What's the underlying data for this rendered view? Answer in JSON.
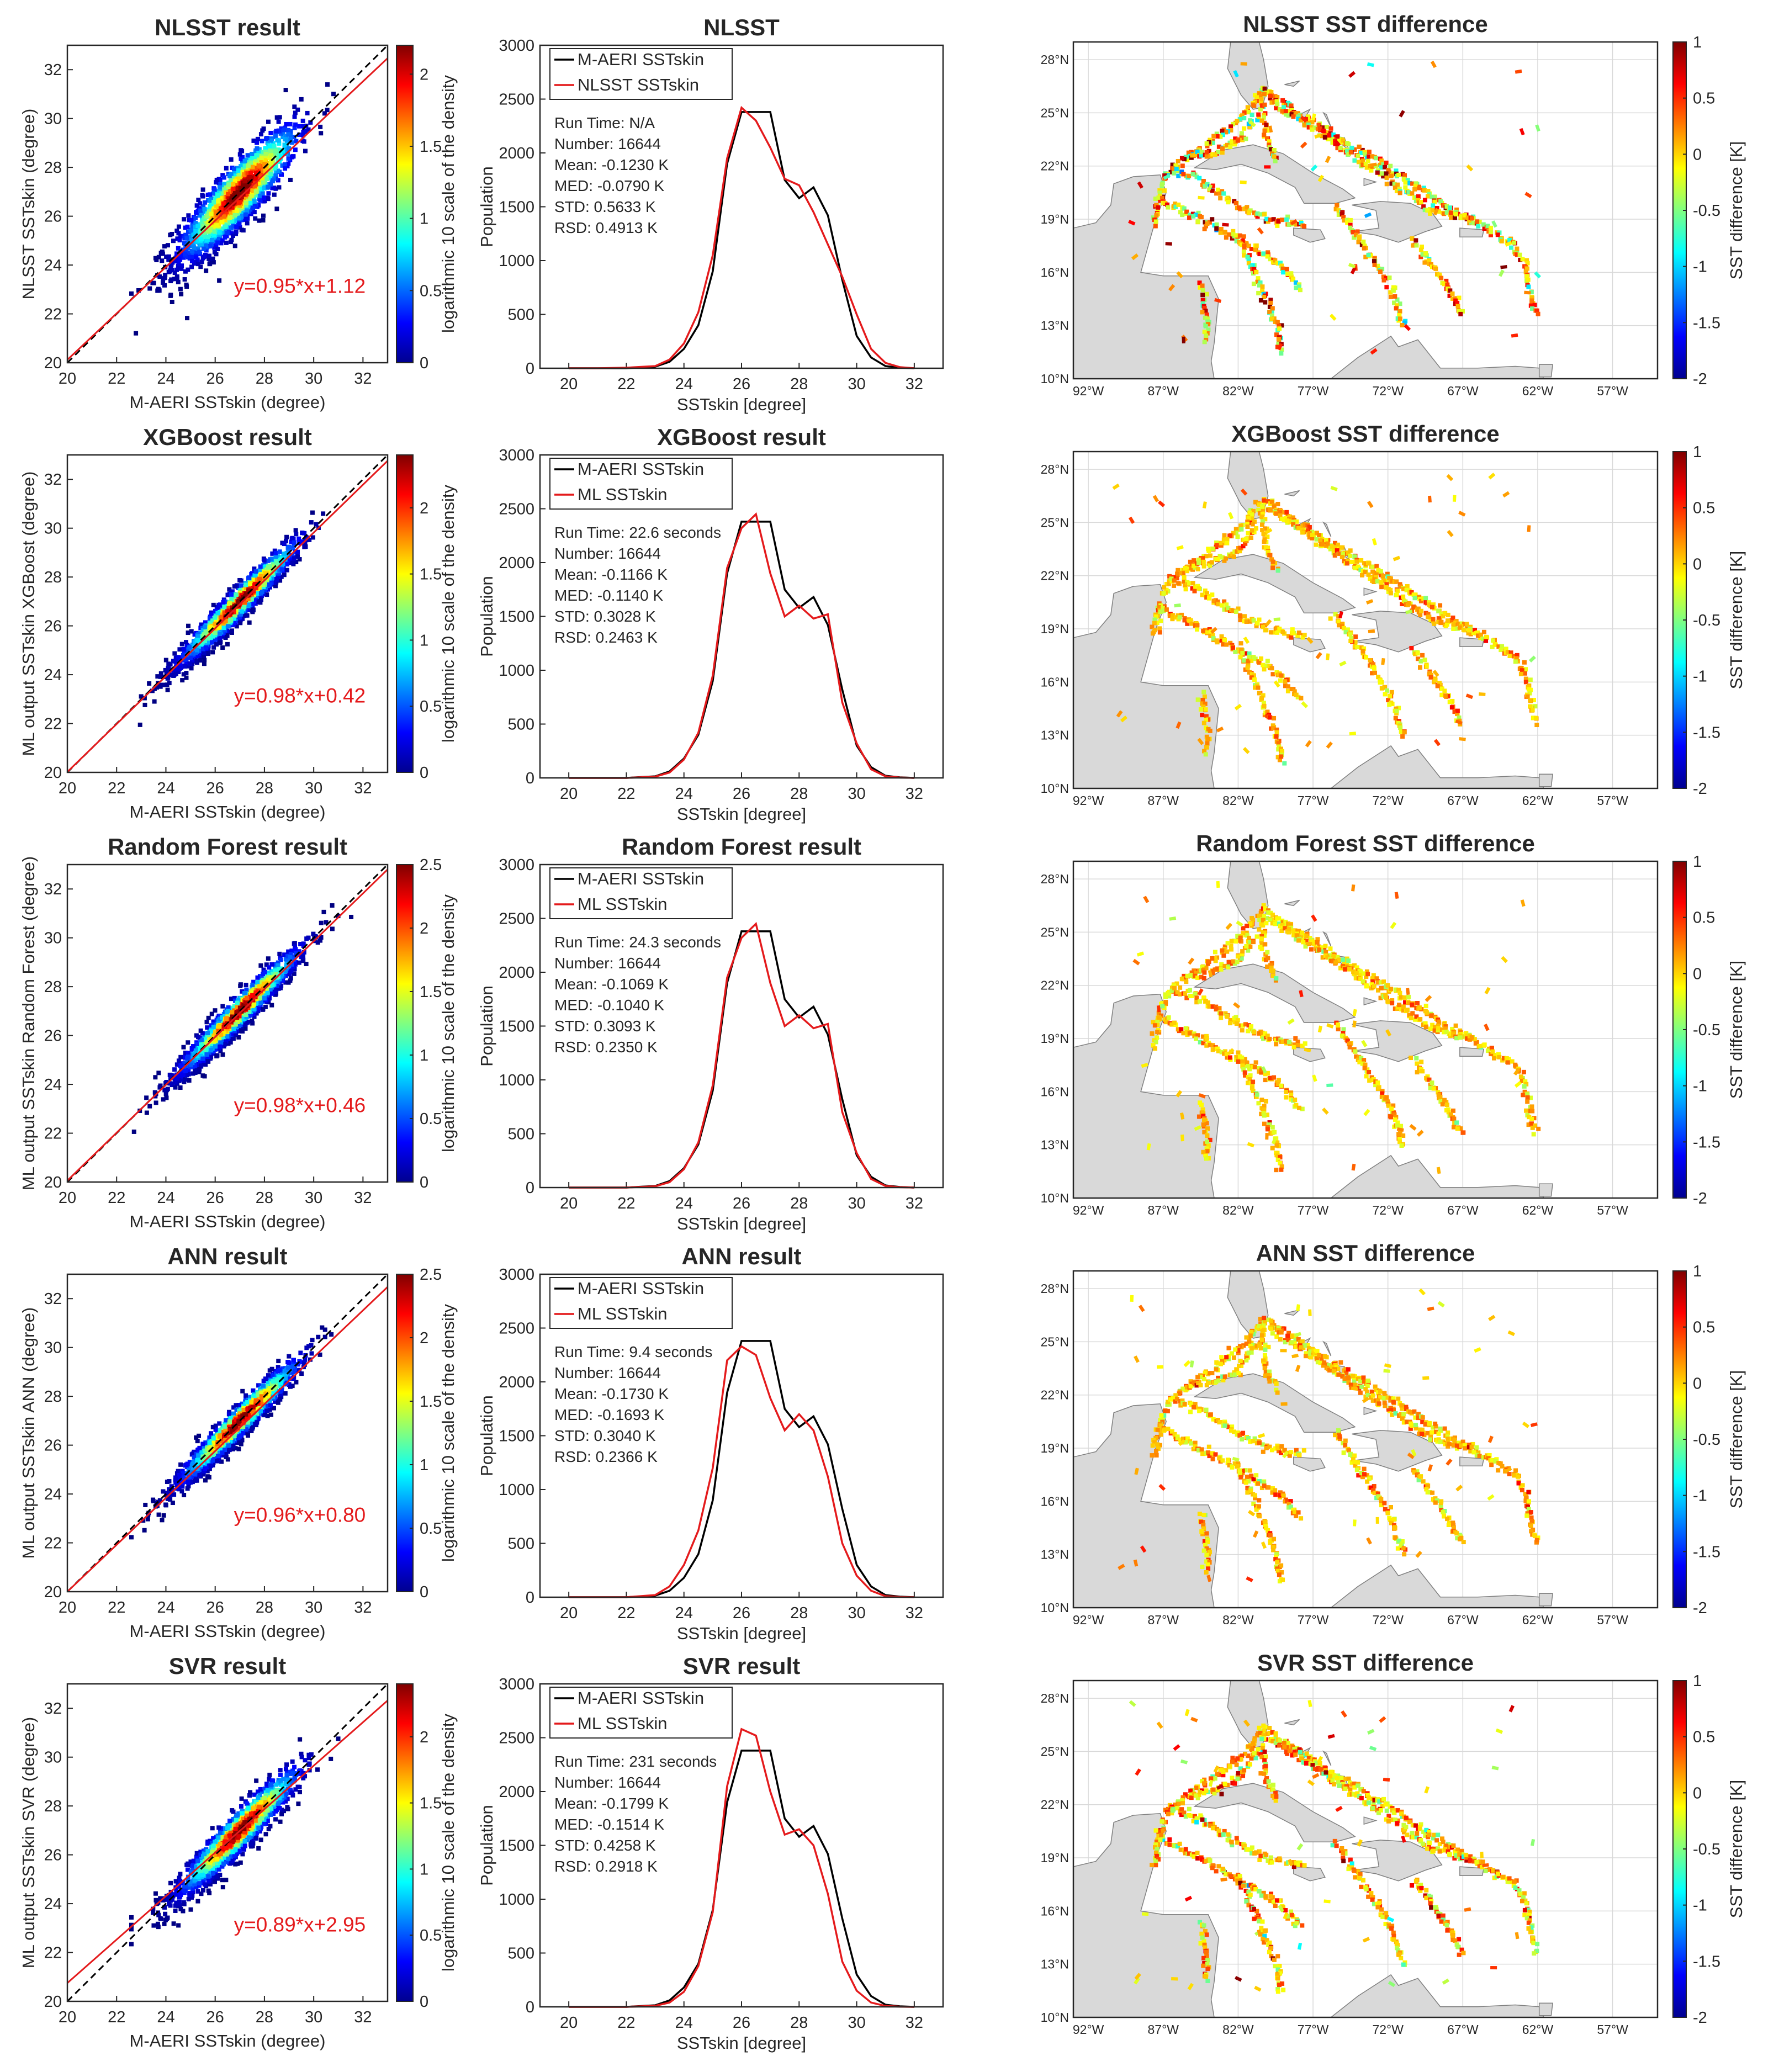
{
  "chart_data": [
    {
      "type": "scatter",
      "panel": "density-scatter",
      "model": "NLSST",
      "title": "NLSST result",
      "xlabel": "M-AERI SSTskin (degree)",
      "ylabel": "NLSST SSTskin (degree)",
      "xlim": [
        20,
        33
      ],
      "ylim": [
        20,
        33
      ],
      "xticks": [
        "20",
        "22",
        "24",
        "26",
        "28",
        "30",
        "32"
      ],
      "yticks": [
        "20",
        "22",
        "24",
        "26",
        "28",
        "30",
        "32"
      ],
      "fit_text": "y=0.95*x+1.12",
      "fit": {
        "slope": 0.95,
        "intercept": 1.12
      },
      "colorbar_label": "logarithmic 10 scale of the density",
      "colorbar_max": 2.2,
      "colorbar_ticks": [
        "0",
        "0.5",
        "1",
        "1.5",
        "2"
      ],
      "spread": 0.7
    },
    {
      "type": "line",
      "panel": "histogram",
      "model": "NLSST",
      "title": "NLSST",
      "xlabel": "SSTskin [degree]",
      "ylabel": "Population",
      "xlim": [
        19,
        33
      ],
      "ylim": [
        0,
        3000
      ],
      "xticks": [
        "20",
        "22",
        "24",
        "26",
        "28",
        "30",
        "32"
      ],
      "yticks": [
        "0",
        "500",
        "1000",
        "1500",
        "2000",
        "2500",
        "3000"
      ],
      "x": [
        20,
        21,
        22,
        23,
        23.5,
        24,
        24.5,
        25,
        25.5,
        26,
        26.5,
        27,
        27.5,
        28,
        28.5,
        29,
        29.5,
        30,
        30.5,
        31,
        31.5,
        32
      ],
      "series": [
        {
          "name": "M-AERI SSTskin",
          "color": "#000000",
          "values": [
            0,
            0,
            0,
            15,
            60,
            180,
            400,
            900,
            1900,
            2380,
            2380,
            2380,
            1750,
            1580,
            1680,
            1420,
            820,
            300,
            100,
            20,
            5,
            0
          ]
        },
        {
          "name": "NLSST SSTskin",
          "color": "#e41a1c",
          "values": [
            0,
            0,
            5,
            20,
            80,
            230,
            520,
            1050,
            1950,
            2420,
            2300,
            2050,
            1760,
            1700,
            1450,
            1150,
            850,
            500,
            180,
            50,
            10,
            0
          ]
        }
      ],
      "stats": [
        "Run Time: N/A",
        "Number: 16644",
        "Mean: -0.1230 K",
        "MED: -0.0790 K",
        "STD: 0.5633 K",
        "RSD: 0.4913 K"
      ]
    },
    {
      "type": "scatter",
      "panel": "difference-map",
      "model": "NLSST",
      "title": "NLSST SST difference",
      "colorbar_label": "SST difference [K]",
      "clim": [
        -2,
        1
      ],
      "colorbar_ticks": [
        "1",
        "0.5",
        "0",
        "-0.5",
        "-1",
        "-1.5",
        "-2"
      ],
      "lon_ticks": [
        "92°W",
        "87°W",
        "82°W",
        "77°W",
        "72°W",
        "67°W",
        "62°W",
        "57°W"
      ],
      "lat_ticks": [
        "10°N",
        "13°N",
        "16°N",
        "19°N",
        "22°N",
        "25°N",
        "28°N"
      ],
      "noise": 0.5
    },
    {
      "type": "scatter",
      "panel": "density-scatter",
      "model": "XGBoost",
      "title": "XGBoost result",
      "xlabel": "M-AERI SSTskin (degree)",
      "ylabel": "ML output SSTskin XGBoost (degree)",
      "xlim": [
        20,
        33
      ],
      "ylim": [
        20,
        33
      ],
      "xticks": [
        "20",
        "22",
        "24",
        "26",
        "28",
        "30",
        "32"
      ],
      "yticks": [
        "20",
        "22",
        "24",
        "26",
        "28",
        "30",
        "32"
      ],
      "fit_text": "y=0.98*x+0.42",
      "fit": {
        "slope": 0.98,
        "intercept": 0.42
      },
      "colorbar_label": "logarithmic 10 scale of the density",
      "colorbar_max": 2.4,
      "colorbar_ticks": [
        "0",
        "0.5",
        "1",
        "1.5",
        "2"
      ],
      "spread": 0.35
    },
    {
      "type": "line",
      "panel": "histogram",
      "model": "XGBoost",
      "title": "XGBoost result",
      "xlabel": "SSTskin [degree]",
      "ylabel": "Population",
      "xlim": [
        19,
        33
      ],
      "ylim": [
        0,
        3000
      ],
      "xticks": [
        "20",
        "22",
        "24",
        "26",
        "28",
        "30",
        "32"
      ],
      "yticks": [
        "0",
        "500",
        "1000",
        "1500",
        "2000",
        "2500",
        "3000"
      ],
      "x": [
        20,
        21,
        22,
        23,
        23.5,
        24,
        24.5,
        25,
        25.5,
        26,
        26.5,
        27,
        27.5,
        28,
        28.5,
        29,
        29.5,
        30,
        30.5,
        31,
        31.5,
        32
      ],
      "series": [
        {
          "name": "M-AERI SSTskin",
          "color": "#000000",
          "values": [
            0,
            0,
            0,
            15,
            60,
            180,
            400,
            900,
            1900,
            2380,
            2380,
            2380,
            1750,
            1580,
            1680,
            1420,
            820,
            300,
            100,
            20,
            5,
            0
          ]
        },
        {
          "name": "ML SSTskin",
          "color": "#e41a1c",
          "values": [
            0,
            0,
            0,
            12,
            50,
            170,
            420,
            950,
            1950,
            2320,
            2450,
            1900,
            1500,
            1600,
            1480,
            1520,
            700,
            320,
            80,
            15,
            3,
            0
          ]
        }
      ],
      "stats": [
        "Run Time: 22.6 seconds",
        "Number: 16644",
        "Mean: -0.1166 K",
        "MED: -0.1140 K",
        "STD: 0.3028 K",
        "RSD: 0.2463 K"
      ]
    },
    {
      "type": "scatter",
      "panel": "difference-map",
      "model": "XGBoost",
      "title": "XGBoost SST difference",
      "colorbar_label": "SST difference [K]",
      "clim": [
        -2,
        1
      ],
      "colorbar_ticks": [
        "1",
        "0.5",
        "0",
        "-0.5",
        "-1",
        "-1.5",
        "-2"
      ],
      "lon_ticks": [
        "92°W",
        "87°W",
        "82°W",
        "77°W",
        "72°W",
        "67°W",
        "62°W",
        "57°W"
      ],
      "lat_ticks": [
        "10°N",
        "13°N",
        "16°N",
        "19°N",
        "22°N",
        "25°N",
        "28°N"
      ],
      "noise": 0.22
    },
    {
      "type": "scatter",
      "panel": "density-scatter",
      "model": "Random Forest",
      "title": "Random Forest result",
      "xlabel": "M-AERI SSTskin (degree)",
      "ylabel": "ML output SSTskin Random Forest (degree)",
      "xlim": [
        20,
        33
      ],
      "ylim": [
        20,
        33
      ],
      "xticks": [
        "20",
        "22",
        "24",
        "26",
        "28",
        "30",
        "32"
      ],
      "yticks": [
        "20",
        "22",
        "24",
        "26",
        "28",
        "30",
        "32"
      ],
      "fit_text": "y=0.98*x+0.46",
      "fit": {
        "slope": 0.98,
        "intercept": 0.46
      },
      "colorbar_label": "logarithmic 10 scale of the density",
      "colorbar_max": 2.5,
      "colorbar_ticks": [
        "0",
        "0.5",
        "1",
        "1.5",
        "2",
        "2.5"
      ],
      "spread": 0.35
    },
    {
      "type": "line",
      "panel": "histogram",
      "model": "Random Forest",
      "title": "Random Forest result",
      "xlabel": "SSTskin [degree]",
      "ylabel": "Population",
      "xlim": [
        19,
        33
      ],
      "ylim": [
        0,
        3000
      ],
      "xticks": [
        "20",
        "22",
        "24",
        "26",
        "28",
        "30",
        "32"
      ],
      "yticks": [
        "0",
        "500",
        "1000",
        "1500",
        "2000",
        "2500",
        "3000"
      ],
      "x": [
        20,
        21,
        22,
        23,
        23.5,
        24,
        24.5,
        25,
        25.5,
        26,
        26.5,
        27,
        27.5,
        28,
        28.5,
        29,
        29.5,
        30,
        30.5,
        31,
        31.5,
        32
      ],
      "series": [
        {
          "name": "M-AERI SSTskin",
          "color": "#000000",
          "values": [
            0,
            0,
            0,
            15,
            60,
            180,
            400,
            900,
            1900,
            2380,
            2380,
            2380,
            1750,
            1580,
            1680,
            1420,
            820,
            300,
            100,
            20,
            5,
            0
          ]
        },
        {
          "name": "ML SSTskin",
          "color": "#e41a1c",
          "values": [
            0,
            0,
            0,
            12,
            50,
            170,
            420,
            950,
            1950,
            2320,
            2450,
            1900,
            1500,
            1600,
            1480,
            1520,
            700,
            320,
            80,
            15,
            3,
            0
          ]
        }
      ],
      "stats": [
        "Run Time: 24.3 seconds",
        "Number: 16644",
        "Mean: -0.1069 K",
        "MED: -0.1040 K",
        "STD: 0.3093 K",
        "RSD: 0.2350 K"
      ]
    },
    {
      "type": "scatter",
      "panel": "difference-map",
      "model": "Random Forest",
      "title": "Random Forest SST difference",
      "colorbar_label": "SST difference [K]",
      "clim": [
        -2,
        1
      ],
      "colorbar_ticks": [
        "1",
        "0.5",
        "0",
        "-0.5",
        "-1",
        "-1.5",
        "-2"
      ],
      "lon_ticks": [
        "92°W",
        "87°W",
        "82°W",
        "77°W",
        "72°W",
        "67°W",
        "62°W",
        "57°W"
      ],
      "lat_ticks": [
        "10°N",
        "13°N",
        "16°N",
        "19°N",
        "22°N",
        "25°N",
        "28°N"
      ],
      "noise": 0.22
    },
    {
      "type": "scatter",
      "panel": "density-scatter",
      "model": "ANN",
      "title": "ANN result",
      "xlabel": "M-AERI SSTskin (degree)",
      "ylabel": "ML output SSTskin ANN (degree)",
      "xlim": [
        20,
        33
      ],
      "ylim": [
        20,
        33
      ],
      "xticks": [
        "20",
        "22",
        "24",
        "26",
        "28",
        "30",
        "32"
      ],
      "yticks": [
        "20",
        "22",
        "24",
        "26",
        "28",
        "30",
        "32"
      ],
      "fit_text": "y=0.96*x+0.80",
      "fit": {
        "slope": 0.96,
        "intercept": 0.8
      },
      "colorbar_label": "logarithmic 10 scale of the density",
      "colorbar_max": 2.5,
      "colorbar_ticks": [
        "0",
        "0.5",
        "1",
        "1.5",
        "2",
        "2.5"
      ],
      "spread": 0.35
    },
    {
      "type": "line",
      "panel": "histogram",
      "model": "ANN",
      "title": "ANN result",
      "xlabel": "SSTskin [degree]",
      "ylabel": "Population",
      "xlim": [
        19,
        33
      ],
      "ylim": [
        0,
        3000
      ],
      "xticks": [
        "20",
        "22",
        "24",
        "26",
        "28",
        "30",
        "32"
      ],
      "yticks": [
        "0",
        "500",
        "1000",
        "1500",
        "2000",
        "2500",
        "3000"
      ],
      "x": [
        20,
        21,
        22,
        23,
        23.5,
        24,
        24.5,
        25,
        25.5,
        26,
        26.5,
        27,
        27.5,
        28,
        28.5,
        29,
        29.5,
        30,
        30.5,
        31,
        31.5,
        32
      ],
      "series": [
        {
          "name": "M-AERI SSTskin",
          "color": "#000000",
          "values": [
            0,
            0,
            0,
            15,
            60,
            180,
            400,
            900,
            1900,
            2380,
            2380,
            2380,
            1750,
            1580,
            1680,
            1420,
            820,
            300,
            100,
            20,
            5,
            0
          ]
        },
        {
          "name": "ML SSTskin",
          "color": "#e41a1c",
          "values": [
            0,
            0,
            0,
            20,
            100,
            300,
            620,
            1200,
            2200,
            2330,
            2250,
            1850,
            1550,
            1700,
            1550,
            1120,
            500,
            200,
            60,
            10,
            2,
            0
          ]
        }
      ],
      "stats": [
        "Run Time: 9.4 seconds",
        "Number: 16644",
        "Mean: -0.1730 K",
        "MED: -0.1693 K",
        "STD: 0.3040 K",
        "RSD: 0.2366 K"
      ]
    },
    {
      "type": "scatter",
      "panel": "difference-map",
      "model": "ANN",
      "title": "ANN SST difference",
      "colorbar_label": "SST difference [K]",
      "clim": [
        -2,
        1
      ],
      "colorbar_ticks": [
        "1",
        "0.5",
        "0",
        "-0.5",
        "-1",
        "-1.5",
        "-2"
      ],
      "lon_ticks": [
        "92°W",
        "87°W",
        "82°W",
        "77°W",
        "72°W",
        "67°W",
        "62°W",
        "57°W"
      ],
      "lat_ticks": [
        "10°N",
        "13°N",
        "16°N",
        "19°N",
        "22°N",
        "25°N",
        "28°N"
      ],
      "noise": 0.24
    },
    {
      "type": "scatter",
      "panel": "density-scatter",
      "model": "SVR",
      "title": "SVR result",
      "xlabel": "M-AERI SSTskin (degree)",
      "ylabel": "ML output SSTskin SVR (degree)",
      "xlim": [
        20,
        33
      ],
      "ylim": [
        20,
        33
      ],
      "xticks": [
        "20",
        "22",
        "24",
        "26",
        "28",
        "30",
        "32"
      ],
      "yticks": [
        "20",
        "22",
        "24",
        "26",
        "28",
        "30",
        "32"
      ],
      "fit_text": "y=0.89*x+2.95",
      "fit": {
        "slope": 0.89,
        "intercept": 2.95
      },
      "colorbar_label": "logarithmic 10 scale of the density",
      "colorbar_max": 2.4,
      "colorbar_ticks": [
        "0",
        "0.5",
        "1",
        "1.5",
        "2"
      ],
      "spread": 0.45
    },
    {
      "type": "line",
      "panel": "histogram",
      "model": "SVR",
      "title": "SVR result",
      "xlabel": "SSTskin [degree]",
      "ylabel": "Population",
      "xlim": [
        19,
        33
      ],
      "ylim": [
        0,
        3000
      ],
      "xticks": [
        "20",
        "22",
        "24",
        "26",
        "28",
        "30",
        "32"
      ],
      "yticks": [
        "0",
        "500",
        "1000",
        "1500",
        "2000",
        "2500",
        "3000"
      ],
      "x": [
        20,
        21,
        22,
        23,
        23.5,
        24,
        24.5,
        25,
        25.5,
        26,
        26.5,
        27,
        27.5,
        28,
        28.5,
        29,
        29.5,
        30,
        30.5,
        31,
        31.5,
        32
      ],
      "series": [
        {
          "name": "M-AERI SSTskin",
          "color": "#000000",
          "values": [
            0,
            0,
            0,
            15,
            60,
            180,
            400,
            900,
            1900,
            2380,
            2380,
            2380,
            1750,
            1580,
            1680,
            1420,
            820,
            300,
            100,
            20,
            5,
            0
          ]
        },
        {
          "name": "ML SSTskin",
          "color": "#e41a1c",
          "values": [
            0,
            0,
            0,
            10,
            40,
            140,
            380,
            880,
            2050,
            2580,
            2520,
            2000,
            1600,
            1650,
            1500,
            1050,
            420,
            150,
            40,
            8,
            2,
            0
          ]
        }
      ],
      "stats": [
        "Run Time: 231 seconds",
        "Number: 16644",
        "Mean: -0.1799 K",
        "MED: -0.1514 K",
        "STD: 0.4258 K",
        "RSD: 0.2918 K"
      ]
    },
    {
      "type": "scatter",
      "panel": "difference-map",
      "model": "SVR",
      "title": "SVR SST difference",
      "colorbar_label": "SST difference [K]",
      "clim": [
        -2,
        1
      ],
      "colorbar_ticks": [
        "1",
        "0.5",
        "0",
        "-0.5",
        "-1",
        "-1.5",
        "-2"
      ],
      "lon_ticks": [
        "92°W",
        "87°W",
        "82°W",
        "77°W",
        "72°W",
        "67°W",
        "62°W",
        "57°W"
      ],
      "lat_ticks": [
        "10°N",
        "13°N",
        "16°N",
        "19°N",
        "22°N",
        "25°N",
        "28°N"
      ],
      "noise": 0.35
    }
  ]
}
